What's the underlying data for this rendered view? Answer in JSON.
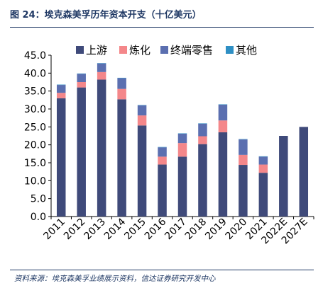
{
  "figure": {
    "title": "图 24：埃克森美孚历年资本开支（十亿美元）",
    "source": "资料来源：埃克森美孚业绩展示资料，信达证券研究开发中心"
  },
  "colors": {
    "upstream": "#3f4a7a",
    "refining": "#f4878a",
    "terminal": "#5b6fb0",
    "other": "#2e8fc4",
    "title": "#1f3864"
  },
  "chart_data": {
    "type": "bar",
    "stacked": true,
    "title": "",
    "xlabel": "",
    "ylabel": "",
    "ylim": [
      0,
      45
    ],
    "yticks": [
      "0.0",
      "5.0",
      "10.0",
      "15.0",
      "20.0",
      "25.0",
      "30.0",
      "35.0",
      "40.0",
      "45.0"
    ],
    "categories": [
      "2011",
      "2012",
      "2013",
      "2014",
      "2015",
      "2016",
      "2017",
      "2018",
      "2019",
      "2020",
      "2021",
      "2022E",
      "2027E"
    ],
    "legend_position": "top",
    "grid": false,
    "series": [
      {
        "name": "上游",
        "color_key": "upstream",
        "values": [
          33.0,
          36.0,
          38.2,
          32.7,
          25.4,
          14.5,
          16.7,
          20.2,
          23.5,
          14.4,
          12.2,
          22.5,
          25.0
        ]
      },
      {
        "name": "炼化",
        "color_key": "refining",
        "values": [
          1.5,
          1.5,
          2.1,
          2.9,
          2.8,
          2.2,
          3.8,
          2.2,
          3.3,
          2.8,
          2.3,
          0,
          0
        ]
      },
      {
        "name": "终端零售",
        "color_key": "terminal",
        "values": [
          2.2,
          2.3,
          2.4,
          3.0,
          2.8,
          2.6,
          2.6,
          3.5,
          4.4,
          4.3,
          2.2,
          0,
          0
        ]
      },
      {
        "name": "其他",
        "color_key": "other",
        "values": [
          0.1,
          0.1,
          0.1,
          0.1,
          0.1,
          0.1,
          0.1,
          0.1,
          0.1,
          0.1,
          0.1,
          0,
          0
        ]
      }
    ]
  }
}
